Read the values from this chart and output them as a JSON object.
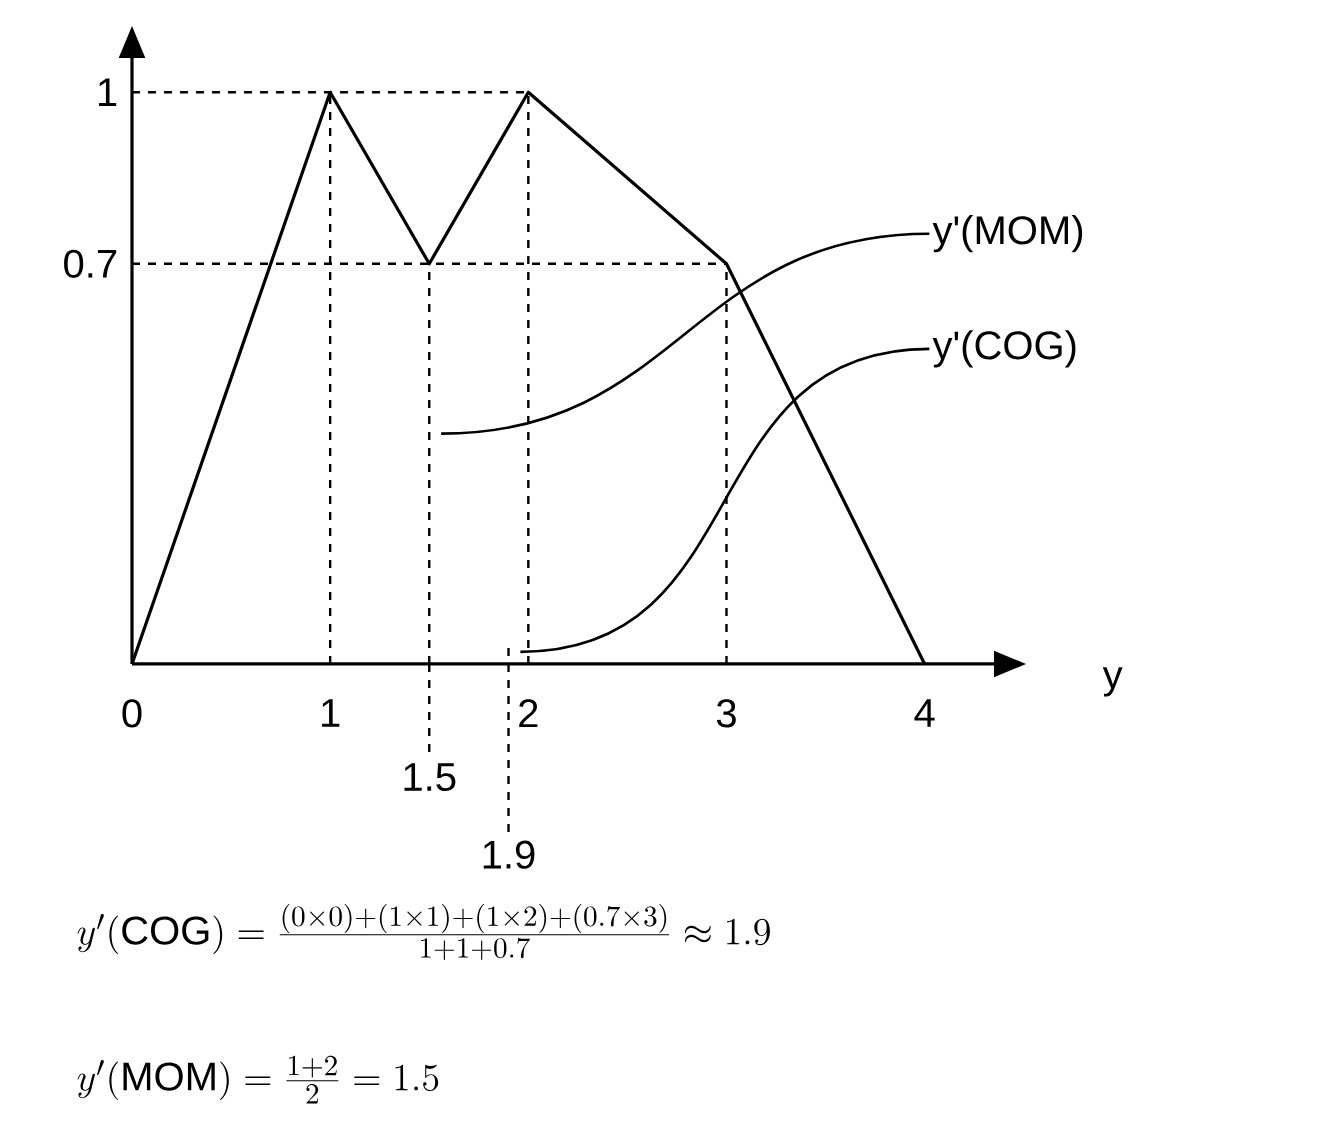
{
  "chart_data": {
    "type": "line",
    "xlabel": "y",
    "x": [
      0,
      1,
      1.5,
      2,
      3,
      4
    ],
    "values": [
      0,
      1,
      0.7,
      1,
      0.7,
      0
    ],
    "color": "#000000",
    "line_style": "solid",
    "xlim": [
      0,
      4.35
    ],
    "ylim": [
      0,
      1.06
    ],
    "xticks": [
      0,
      1,
      2,
      3,
      4
    ],
    "yticks": [
      0.7,
      1
    ],
    "ref_lines": [
      {
        "axis": "y",
        "value": 1,
        "line_style": "dashed"
      },
      {
        "axis": "y",
        "value": 0.7,
        "line_style": "dashed"
      },
      {
        "axis": "x",
        "value": 1,
        "line_style": "dashed"
      },
      {
        "axis": "x",
        "value": 1.5,
        "label": "1.5",
        "line_style": "dashed"
      },
      {
        "axis": "x",
        "value": 1.9,
        "label": "1.9",
        "line_style": "dashed"
      },
      {
        "axis": "x",
        "value": 2,
        "line_style": "dashed"
      },
      {
        "axis": "x",
        "value": 3,
        "line_style": "dashed"
      }
    ],
    "annotations": [
      "y'(MOM)",
      "y'(COG)",
      "y'(\\mathrm{COG}) = \\frac{(0\\times 0)+(1\\times 1)+(1\\times 2)+(0.7\\times 3)}{1+1+0.7} \\approx 1.9",
      "y'(\\mathrm{MOM}) = \\frac{1+2}{2} = 1.5"
    ]
  }
}
